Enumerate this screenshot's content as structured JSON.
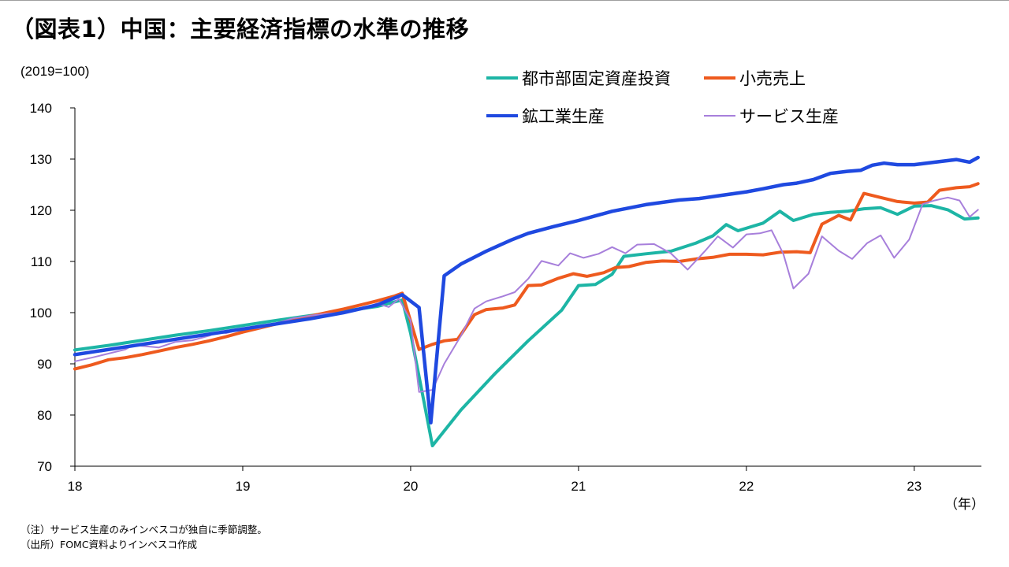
{
  "title": "（図表1）中国：主要経済指標の水準の推移",
  "notes": [
    "（注）サービス生産のみインベスコが独自に季節調整。",
    "（出所）FOMC資料よりインベスコ作成"
  ],
  "chart_data": {
    "type": "line",
    "ylabel": "(2019=100)",
    "xlabel": "（年）",
    "ylim": [
      70,
      140
    ],
    "yticks": [
      70,
      80,
      90,
      100,
      110,
      120,
      130,
      140
    ],
    "xlim": [
      2018,
      2023.4
    ],
    "xticks": [
      {
        "value": 2018,
        "label": "18"
      },
      {
        "value": 2019,
        "label": "19"
      },
      {
        "value": 2020,
        "label": "20"
      },
      {
        "value": 2021,
        "label": "21"
      },
      {
        "value": 2022,
        "label": "22"
      },
      {
        "value": 2023,
        "label": "23"
      }
    ],
    "grid": false,
    "legend_position": "top-right",
    "series": [
      {
        "name": "都市部固定資産投資",
        "color": "#1DB5A5",
        "points": [
          [
            2018.0,
            92.7
          ],
          [
            2018.2,
            93.6
          ],
          [
            2018.4,
            94.6
          ],
          [
            2018.6,
            95.6
          ],
          [
            2018.8,
            96.5
          ],
          [
            2019.0,
            97.5
          ],
          [
            2019.2,
            98.5
          ],
          [
            2019.4,
            99.4
          ],
          [
            2019.6,
            100.3
          ],
          [
            2019.8,
            101.2
          ],
          [
            2019.95,
            102.5
          ],
          [
            2020.0,
            96.0
          ],
          [
            2020.083,
            82.0
          ],
          [
            2020.13,
            74.0
          ],
          [
            2020.3,
            81.0
          ],
          [
            2020.5,
            88.0
          ],
          [
            2020.7,
            94.5
          ],
          [
            2020.9,
            100.5
          ],
          [
            2021.0,
            105.3
          ],
          [
            2021.1,
            105.5
          ],
          [
            2021.2,
            107.5
          ],
          [
            2021.27,
            111.0
          ],
          [
            2021.4,
            111.5
          ],
          [
            2021.55,
            112.0
          ],
          [
            2021.7,
            113.6
          ],
          [
            2021.8,
            115.0
          ],
          [
            2021.88,
            117.2
          ],
          [
            2021.95,
            116.0
          ],
          [
            2022.1,
            117.5
          ],
          [
            2022.2,
            119.8
          ],
          [
            2022.28,
            118.0
          ],
          [
            2022.4,
            119.2
          ],
          [
            2022.5,
            119.6
          ],
          [
            2022.6,
            119.8
          ],
          [
            2022.7,
            120.3
          ],
          [
            2022.8,
            120.5
          ],
          [
            2022.9,
            119.2
          ],
          [
            2023.0,
            120.8
          ],
          [
            2023.1,
            120.9
          ],
          [
            2023.2,
            120.1
          ],
          [
            2023.3,
            118.3
          ],
          [
            2023.38,
            118.5
          ]
        ]
      },
      {
        "name": "小売売上",
        "color": "#EE5A1E",
        "points": [
          [
            2018.0,
            89.0
          ],
          [
            2018.1,
            89.8
          ],
          [
            2018.2,
            90.8
          ],
          [
            2018.3,
            91.2
          ],
          [
            2018.4,
            91.8
          ],
          [
            2018.5,
            92.5
          ],
          [
            2018.6,
            93.2
          ],
          [
            2018.7,
            93.8
          ],
          [
            2018.8,
            94.5
          ],
          [
            2018.9,
            95.3
          ],
          [
            2019.0,
            96.2
          ],
          [
            2019.1,
            97.0
          ],
          [
            2019.2,
            97.8
          ],
          [
            2019.3,
            98.6
          ],
          [
            2019.4,
            99.3
          ],
          [
            2019.5,
            100.0
          ],
          [
            2019.6,
            100.7
          ],
          [
            2019.7,
            101.5
          ],
          [
            2019.8,
            102.3
          ],
          [
            2019.9,
            103.2
          ],
          [
            2019.95,
            103.8
          ],
          [
            2020.05,
            92.8
          ],
          [
            2020.13,
            93.8
          ],
          [
            2020.2,
            94.5
          ],
          [
            2020.28,
            94.8
          ],
          [
            2020.38,
            99.6
          ],
          [
            2020.45,
            100.6
          ],
          [
            2020.55,
            100.9
          ],
          [
            2020.62,
            101.5
          ],
          [
            2020.7,
            105.3
          ],
          [
            2020.78,
            105.4
          ],
          [
            2020.88,
            106.7
          ],
          [
            2020.97,
            107.6
          ],
          [
            2021.05,
            107.1
          ],
          [
            2021.15,
            107.8
          ],
          [
            2021.22,
            108.8
          ],
          [
            2021.3,
            109.0
          ],
          [
            2021.4,
            109.8
          ],
          [
            2021.5,
            110.1
          ],
          [
            2021.6,
            110.0
          ],
          [
            2021.7,
            110.5
          ],
          [
            2021.8,
            110.8
          ],
          [
            2021.9,
            111.4
          ],
          [
            2022.0,
            111.4
          ],
          [
            2022.1,
            111.3
          ],
          [
            2022.2,
            111.8
          ],
          [
            2022.3,
            111.9
          ],
          [
            2022.38,
            111.7
          ],
          [
            2022.45,
            117.3
          ],
          [
            2022.55,
            119.0
          ],
          [
            2022.62,
            118.1
          ],
          [
            2022.7,
            123.3
          ],
          [
            2022.8,
            122.5
          ],
          [
            2022.9,
            121.7
          ],
          [
            2023.0,
            121.4
          ],
          [
            2023.08,
            121.6
          ],
          [
            2023.15,
            123.9
          ],
          [
            2023.25,
            124.4
          ],
          [
            2023.33,
            124.6
          ],
          [
            2023.38,
            125.2
          ]
        ]
      },
      {
        "name": "鉱工業生産",
        "color": "#1F49E0",
        "points": [
          [
            2018.0,
            91.8
          ],
          [
            2018.2,
            92.8
          ],
          [
            2018.4,
            93.8
          ],
          [
            2018.6,
            94.8
          ],
          [
            2018.8,
            95.8
          ],
          [
            2019.0,
            96.8
          ],
          [
            2019.2,
            97.8
          ],
          [
            2019.4,
            98.8
          ],
          [
            2019.6,
            100.0
          ],
          [
            2019.8,
            101.5
          ],
          [
            2019.95,
            103.5
          ],
          [
            2020.05,
            101.0
          ],
          [
            2020.12,
            78.5
          ],
          [
            2020.2,
            107.2
          ],
          [
            2020.3,
            109.5
          ],
          [
            2020.45,
            112.0
          ],
          [
            2020.6,
            114.2
          ],
          [
            2020.7,
            115.5
          ],
          [
            2020.85,
            116.8
          ],
          [
            2021.0,
            118.0
          ],
          [
            2021.2,
            119.8
          ],
          [
            2021.4,
            121.1
          ],
          [
            2021.6,
            122.0
          ],
          [
            2021.72,
            122.3
          ],
          [
            2021.85,
            122.9
          ],
          [
            2022.0,
            123.6
          ],
          [
            2022.1,
            124.2
          ],
          [
            2022.22,
            125.0
          ],
          [
            2022.3,
            125.3
          ],
          [
            2022.4,
            126.0
          ],
          [
            2022.5,
            127.2
          ],
          [
            2022.6,
            127.6
          ],
          [
            2022.68,
            127.8
          ],
          [
            2022.75,
            128.8
          ],
          [
            2022.82,
            129.2
          ],
          [
            2022.9,
            128.9
          ],
          [
            2023.0,
            128.9
          ],
          [
            2023.1,
            129.3
          ],
          [
            2023.25,
            129.9
          ],
          [
            2023.33,
            129.4
          ],
          [
            2023.38,
            130.3
          ]
        ]
      },
      {
        "name": "サービス生産",
        "color": "#A77FDB",
        "points": [
          [
            2018.0,
            90.5
          ],
          [
            2018.1,
            91.2
          ],
          [
            2018.2,
            92.0
          ],
          [
            2018.3,
            92.8
          ],
          [
            2018.35,
            93.7
          ],
          [
            2018.4,
            93.5
          ],
          [
            2018.5,
            93.2
          ],
          [
            2018.6,
            94.3
          ],
          [
            2018.7,
            94.6
          ],
          [
            2018.8,
            95.5
          ],
          [
            2018.85,
            96.2
          ],
          [
            2018.9,
            96.0
          ],
          [
            2019.0,
            96.8
          ],
          [
            2019.1,
            97.0
          ],
          [
            2019.2,
            97.9
          ],
          [
            2019.3,
            98.9
          ],
          [
            2019.4,
            99.4
          ],
          [
            2019.5,
            99.8
          ],
          [
            2019.6,
            100.0
          ],
          [
            2019.7,
            100.6
          ],
          [
            2019.8,
            101.8
          ],
          [
            2019.87,
            101.1
          ],
          [
            2019.93,
            102.7
          ],
          [
            2020.0,
            98.5
          ],
          [
            2020.05,
            84.5
          ],
          [
            2020.13,
            84.9
          ],
          [
            2020.2,
            90.0
          ],
          [
            2020.3,
            95.5
          ],
          [
            2020.38,
            100.8
          ],
          [
            2020.45,
            102.2
          ],
          [
            2020.55,
            103.2
          ],
          [
            2020.62,
            104.0
          ],
          [
            2020.7,
            106.6
          ],
          [
            2020.78,
            110.1
          ],
          [
            2020.88,
            109.2
          ],
          [
            2020.95,
            111.6
          ],
          [
            2021.03,
            110.7
          ],
          [
            2021.12,
            111.5
          ],
          [
            2021.2,
            112.8
          ],
          [
            2021.28,
            111.6
          ],
          [
            2021.35,
            113.3
          ],
          [
            2021.45,
            113.4
          ],
          [
            2021.55,
            111.6
          ],
          [
            2021.65,
            108.4
          ],
          [
            2021.75,
            111.9
          ],
          [
            2021.83,
            114.9
          ],
          [
            2021.92,
            112.7
          ],
          [
            2022.0,
            115.3
          ],
          [
            2022.08,
            115.5
          ],
          [
            2022.15,
            116.1
          ],
          [
            2022.22,
            111.5
          ],
          [
            2022.28,
            104.7
          ],
          [
            2022.37,
            107.6
          ],
          [
            2022.45,
            114.9
          ],
          [
            2022.55,
            112.1
          ],
          [
            2022.63,
            110.5
          ],
          [
            2022.72,
            113.6
          ],
          [
            2022.8,
            115.1
          ],
          [
            2022.88,
            110.7
          ],
          [
            2022.97,
            114.3
          ],
          [
            2023.05,
            121.2
          ],
          [
            2023.12,
            121.9
          ],
          [
            2023.2,
            122.5
          ],
          [
            2023.27,
            121.9
          ],
          [
            2023.33,
            118.7
          ],
          [
            2023.38,
            120.1
          ]
        ]
      }
    ]
  }
}
